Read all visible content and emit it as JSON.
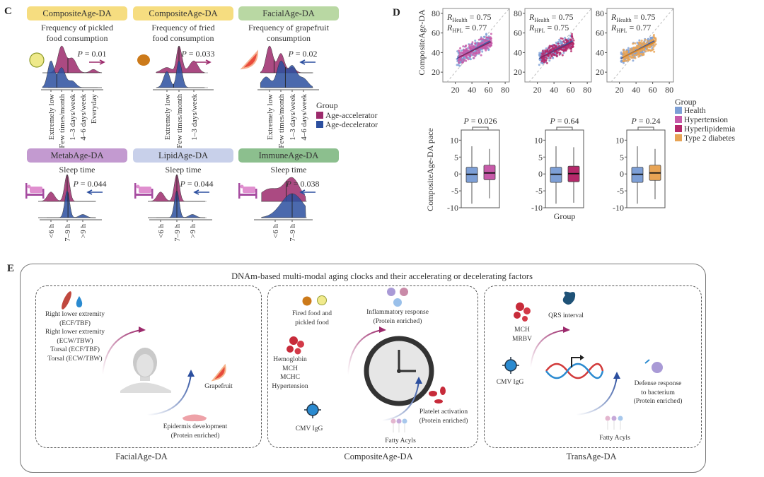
{
  "panel_labels": {
    "c": "C",
    "d": "D",
    "e": "E"
  },
  "colors": {
    "age_accelerator": "#9c2a6c",
    "age_decelerator": "#2c4f9f",
    "health": "#7d9fd6",
    "hypertension": "#c75aa9",
    "hyperlipidemia": "#b5286a",
    "type2_diabetes": "#e8a455",
    "box_yellow": "#f6dd80",
    "box_green": "#b9d8a3",
    "box_purple": "#c39ad0",
    "box_lavender": "#c8d0ea",
    "box_darkgreen": "#8cbf8e"
  },
  "panel_c": {
    "legend": {
      "title": "Group",
      "items": [
        "Age-accelerator",
        "Age-decelerator"
      ]
    },
    "plots": [
      {
        "clock": "CompositeAge-DA",
        "subtitle": [
          "Frequency of pickled",
          "food consumption"
        ],
        "icon": "pickle-slice-icon",
        "p": "P = 0.01",
        "direction": "accelerate"
      },
      {
        "clock": "CompositeAge-DA",
        "subtitle": [
          "Frequency of fried",
          "food consumption"
        ],
        "icon": "fried-food-icon",
        "p": "P = 0.033",
        "direction": "accelerate"
      },
      {
        "clock": "FacialAge-DA",
        "subtitle": [
          "Frequency of grapefruit",
          "consumption"
        ],
        "icon": "grapefruit-icon",
        "p": "P = 0.02",
        "direction": "decelerate"
      },
      {
        "clock": "MetabAge-DA",
        "subtitle": [
          "Sleep time"
        ],
        "icon": "bed-icon",
        "p": "P = 0.044",
        "direction": "decelerate"
      },
      {
        "clock": "LipidAge-DA",
        "subtitle": [
          "Sleep time"
        ],
        "icon": "bed-icon",
        "p": "P = 0.044",
        "direction": "decelerate"
      },
      {
        "clock": "ImmuneAge-DA",
        "subtitle": [
          "Sleep time"
        ],
        "icon": "bed-icon",
        "p": "P = 0.038",
        "direction": "decelerate"
      }
    ]
  },
  "panel_d": {
    "scatter_ylabel": "CompositeAge-DA",
    "box_ylabel": "CompositeAge-DA pace",
    "box_xlabel": "Group",
    "legend": {
      "title": "Group",
      "items": [
        "Health",
        "Hypertension",
        "Hyperlipidemia",
        "Type 2 diabetes"
      ]
    },
    "scatter_annotations": [
      {
        "r_health": "= 0.75",
        "r_hpl": "= 0.77"
      },
      {
        "r_health": "= 0.75",
        "r_hpl": "= 0.75"
      },
      {
        "r_health": "= 0.75",
        "r_hpl": "= 0.77"
      }
    ],
    "r_label": "R",
    "r_sub_health": "Health",
    "r_sub_hpl": "HPL",
    "box_p": [
      "P = 0.026",
      "P = 0.64",
      "P = 0.24"
    ]
  },
  "chart_data": [
    {
      "type": "ridgeline",
      "title": "Frequency of pickled food consumption",
      "categories": [
        "Extremely low",
        "Few times/month",
        "1–3 days/week",
        "4–6 days/week",
        "Everyday"
      ],
      "series": [
        {
          "name": "Age-accelerator",
          "density_peaks": [
            [
              1,
              0.35,
              1
            ],
            [
              2,
              0.4,
              0.55
            ],
            [
              4,
              0.3,
              0.13
            ]
          ],
          "mean": 1.6
        },
        {
          "name": "Age-decelerator",
          "density_peaks": [
            [
              0,
              0.3,
              1
            ],
            [
              1,
              0.35,
              0.75
            ],
            [
              2,
              0.35,
              0.25
            ]
          ],
          "mean": 0.55
        }
      ],
      "p_value": 0.01
    },
    {
      "type": "ridgeline",
      "title": "Frequency of fried food consumption",
      "categories": [
        "Extremely low",
        "Few times/month",
        "1–3 days/week"
      ],
      "series": [
        {
          "name": "Age-accelerator",
          "density_peaks": [
            [
              0,
              0.4,
              0.2
            ],
            [
              1,
              0.2,
              1
            ],
            [
              2,
              0.3,
              0.45
            ]
          ],
          "mean": 1.0
        },
        {
          "name": "Age-decelerator",
          "density_peaks": [
            [
              0,
              0.25,
              0.6
            ],
            [
              1,
              0.2,
              1
            ]
          ],
          "mean": 0.55
        }
      ],
      "p_value": 0.033
    },
    {
      "type": "ridgeline",
      "title": "Frequency of grapefruit consumption",
      "categories": [
        "Extremely low",
        "Few times/month",
        "1–3 days/week",
        "4–6 days/week"
      ],
      "series": [
        {
          "name": "Age-accelerator",
          "density_peaks": [
            [
              0,
              0.3,
              1
            ],
            [
              1,
              0.3,
              0.72
            ],
            [
              2,
              0.3,
              0.2
            ]
          ],
          "mean": 0.4
        },
        {
          "name": "Age-decelerator",
          "density_peaks": [
            [
              -0.3,
              0.4,
              0.3
            ],
            [
              1,
              0.35,
              0.72
            ],
            [
              2,
              0.4,
              0.6
            ],
            [
              3,
              0.4,
              0.25
            ]
          ],
          "mean": 1.4
        }
      ],
      "p_value": 0.02
    },
    {
      "type": "ridgeline",
      "title": "Sleep time",
      "categories": [
        "<6 h",
        "7–9 h",
        ">9 h"
      ],
      "series": [
        {
          "name": "Age-accelerator",
          "density_peaks": [
            [
              0,
              0.22,
              0.35
            ],
            [
              1,
              0.16,
              1
            ]
          ],
          "mean": 1.0
        },
        {
          "name": "Age-decelerator",
          "density_peaks": [
            [
              1,
              0.15,
              1
            ],
            [
              2,
              0.22,
              0.12
            ]
          ],
          "mean": 1.05
        }
      ],
      "p_value": 0.044
    },
    {
      "type": "ridgeline",
      "title": "Sleep time",
      "categories": [
        "<6 h",
        "7–9 h",
        ">9 h"
      ],
      "series": [
        {
          "name": "Age-accelerator",
          "density_peaks": [
            [
              0,
              0.22,
              0.35
            ],
            [
              1,
              0.16,
              1
            ]
          ],
          "mean": 1.0
        },
        {
          "name": "Age-decelerator",
          "density_peaks": [
            [
              1,
              0.15,
              1
            ],
            [
              2,
              0.22,
              0.12
            ]
          ],
          "mean": 1.0
        }
      ],
      "p_value": 0.044
    },
    {
      "type": "ridgeline",
      "title": "Sleep time",
      "categories": [
        "<6 h",
        "7–9 h"
      ],
      "series": [
        {
          "name": "Age-accelerator",
          "density_peaks": [
            [
              -0.3,
              0.6,
              0.55
            ],
            [
              1,
              0.45,
              1
            ]
          ],
          "mean": 0.65
        },
        {
          "name": "Age-decelerator",
          "density_peaks": [
            [
              1,
              0.65,
              1
            ]
          ],
          "mean": 1.0
        }
      ],
      "p_value": 0.038
    },
    {
      "type": "scatter",
      "xlim": [
        5,
        85
      ],
      "ylim": [
        10,
        85
      ],
      "xticks": [
        20,
        40,
        60,
        80
      ],
      "yticks": [
        20,
        40,
        60,
        80
      ],
      "ylabel": "CompositeAge-DA",
      "series": [
        {
          "name": "Health",
          "x_range": [
            22,
            62
          ],
          "fit": [
            [
              22,
              34
            ],
            [
              62,
              52
            ]
          ]
        },
        {
          "name": "Hypertension",
          "x_range": [
            24,
            64
          ],
          "fit": [
            [
              24,
              35
            ],
            [
              63,
              51
            ]
          ]
        }
      ],
      "r": {
        "Health": 0.75,
        "HPL": 0.77
      }
    },
    {
      "type": "scatter",
      "xlim": [
        5,
        85
      ],
      "ylim": [
        10,
        85
      ],
      "xticks": [
        20,
        40,
        60,
        80
      ],
      "yticks": [
        20,
        40,
        60,
        80
      ],
      "series": [
        {
          "name": "Health",
          "x_range": [
            22,
            62
          ],
          "fit": [
            [
              22,
              34
            ],
            [
              62,
              52
            ]
          ]
        },
        {
          "name": "Hyperlipidemia",
          "x_range": [
            24,
            64
          ],
          "fit": [
            [
              24,
              35
            ],
            [
              63,
              51
            ]
          ]
        }
      ],
      "r": {
        "Health": 0.75,
        "HPL": 0.75
      }
    },
    {
      "type": "scatter",
      "xlim": [
        5,
        85
      ],
      "ylim": [
        10,
        85
      ],
      "xticks": [
        20,
        40,
        60,
        80
      ],
      "yticks": [
        20,
        40,
        60,
        80
      ],
      "series": [
        {
          "name": "Health",
          "x_range": [
            22,
            62
          ],
          "fit": [
            [
              22,
              34
            ],
            [
              62,
              52
            ]
          ]
        },
        {
          "name": "Type 2 diabetes",
          "x_range": [
            24,
            64
          ],
          "fit": [
            [
              24,
              35
            ],
            [
              63,
              51
            ]
          ]
        }
      ],
      "r": {
        "Health": 0.75,
        "HPL": 0.77
      }
    },
    {
      "type": "box",
      "ylim": [
        -10,
        13
      ],
      "yticks": [
        -10,
        -5,
        0,
        5,
        10
      ],
      "ylabel": "CompositeAge-DA pace",
      "p_value": 0.026,
      "series": [
        {
          "name": "Health",
          "whisker_low": -8.8,
          "q1": -2.5,
          "median": -0.1,
          "q3": 2.0,
          "whisker_high": 8.2
        },
        {
          "name": "Hypertension",
          "whisker_low": -7.2,
          "q1": -1.7,
          "median": 0.3,
          "q3": 2.6,
          "whisker_high": 7.4
        }
      ]
    },
    {
      "type": "box",
      "ylim": [
        -10,
        13
      ],
      "yticks": [
        -10,
        -5,
        0,
        5,
        10
      ],
      "xlabel": "Group",
      "p_value": 0.64,
      "series": [
        {
          "name": "Health",
          "whisker_low": -8.8,
          "q1": -2.5,
          "median": -0.1,
          "q3": 2.0,
          "whisker_high": 8.2
        },
        {
          "name": "Hyperlipidemia",
          "whisker_low": -8.5,
          "q1": -2.3,
          "median": 0.1,
          "q3": 2.3,
          "whisker_high": 7.9
        }
      ]
    },
    {
      "type": "box",
      "ylim": [
        -10,
        13
      ],
      "yticks": [
        -10,
        -5,
        0,
        5,
        10
      ],
      "p_value": 0.24,
      "series": [
        {
          "name": "Health",
          "whisker_low": -8.8,
          "q1": -2.5,
          "median": -0.1,
          "q3": 2.0,
          "whisker_high": 8.2
        },
        {
          "name": "Type 2 diabetes",
          "whisker_low": -7.5,
          "q1": -1.9,
          "median": 0.3,
          "q3": 2.6,
          "whisker_high": 7.4
        }
      ]
    }
  ],
  "panel_e": {
    "title": "DNAm-based multi-modal aging clocks and their accelerating or decelerating factors",
    "facial": {
      "label": "FacialAge-DA",
      "accelerators": [
        "Right lower extremity",
        "(ECF/TBF)",
        "Right lower extremity",
        "(ECW/TBW)",
        "Torsal (ECF/TBF)",
        "Torsal (ECW/TBW)"
      ],
      "grapefruit": "Grapefruit",
      "epidermis": [
        "Epidermis development",
        "(Protein enriched)"
      ]
    },
    "composite": {
      "label": "CompositeAge-DA",
      "food": [
        "Fired food and",
        "pickled food"
      ],
      "inflammatory": [
        "Inflammatory response",
        "(Protein enriched)"
      ],
      "blood": [
        "Hemoglobin",
        "MCH",
        "MCHC",
        "Hypertension"
      ],
      "cmv": "CMV IgG",
      "platelet": [
        "Platelet activation",
        "(Protein enriched)"
      ],
      "fatty": "Fatty Acyls"
    },
    "trans": {
      "label": "TransAge-DA",
      "blood": [
        "MCH",
        "MRBV"
      ],
      "qrs": "QRS interval",
      "cmv": "CMV IgG",
      "defense": [
        "Defense response",
        "to bacterium",
        "(Protein enriched)"
      ],
      "fatty": "Fatty Acyls"
    }
  }
}
